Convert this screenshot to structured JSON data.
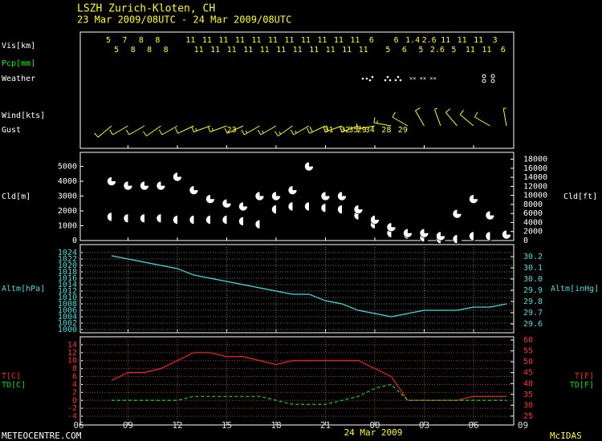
{
  "header": {
    "station": "LSZH  Zurich-Kloten,  CH",
    "period": "23 Mar 2009/08UTC - 24 Mar 2009/08UTC"
  },
  "footer": {
    "site": "METEOCENTRE.COM",
    "date": "24 Mar 2009",
    "credit": "McIDAS"
  },
  "chart_data": [
    {
      "type": "surface-obs",
      "row_labels": [
        "Vis[km]",
        "Pcp[mm]",
        "Weather",
        "Wind[kts]",
        "Gust"
      ],
      "row_label_colors": [
        "#ffffff",
        "#00ff00",
        "#ffffff",
        "#ffffff",
        "#ffffff"
      ],
      "color": "#ffff00",
      "vis": {
        "x": [
          1.8,
          2.3,
          2.8,
          3.3,
          3.8,
          4.3,
          4.8,
          5.3,
          6.8,
          7.3,
          7.8,
          8.3,
          8.8,
          9.3,
          9.8,
          10.3,
          10.8,
          11.3,
          11.8,
          12.3,
          12.8,
          13.3,
          13.8,
          14.3,
          14.8,
          15.3,
          15.8,
          16.3,
          16.8,
          17.3,
          17.8,
          18.8,
          19.3,
          19.8,
          20.3,
          20.8,
          21.3,
          21.8,
          22.3,
          22.8,
          23.3,
          23.8,
          24.3,
          24.8,
          25.3,
          25.8
        ],
        "values": [
          5,
          5,
          7,
          8,
          8,
          8,
          8,
          8,
          11,
          11,
          11,
          11,
          11,
          11,
          11,
          11,
          11,
          11,
          11,
          11,
          11,
          11,
          11,
          11,
          11,
          11,
          11,
          11,
          11,
          11,
          6,
          5,
          6,
          6,
          1.4,
          5,
          2.6,
          2.6,
          11,
          5,
          11,
          11,
          11,
          11,
          3,
          6
        ]
      },
      "wind": {
        "x": [
          2,
          3,
          4,
          5,
          6,
          7,
          8,
          9,
          10,
          11,
          12,
          13,
          14,
          15,
          16,
          17,
          18,
          19,
          20,
          21,
          22,
          23,
          24,
          25,
          26
        ],
        "direction": [
          230,
          240,
          240,
          235,
          240,
          245,
          250,
          250,
          245,
          240,
          240,
          235,
          240,
          245,
          250,
          250,
          260,
          280,
          300,
          330,
          340,
          320,
          310,
          300,
          350
        ],
        "speed": [
          10,
          12,
          12,
          10,
          12,
          14,
          15,
          15,
          14,
          15,
          16,
          15,
          18,
          20,
          20,
          18,
          16,
          15,
          12,
          10,
          8,
          10,
          12,
          10,
          8
        ]
      },
      "gust": {
        "x": [
          9.3,
          15.2,
          16.2,
          16.7,
          17.2,
          17.7,
          18.7,
          19.7
        ],
        "values": [
          23,
          31,
          32,
          35,
          29,
          34,
          28,
          29
        ]
      }
    },
    {
      "type": "cloud",
      "ylabel": "Cld[m]",
      "y2label": "Cld[ft]",
      "color": "#ffffff",
      "x": [
        2,
        3,
        4,
        5,
        6,
        7,
        8,
        9,
        10,
        11,
        12,
        13,
        14,
        15,
        16,
        17,
        18,
        19,
        20,
        21,
        22,
        23,
        24,
        25,
        26
      ],
      "series": [
        {
          "values": [
            1600,
            1500,
            1500,
            1500,
            1400,
            1400,
            1400,
            1400,
            1300,
            1100,
            2100,
            2300,
            2300,
            2200,
            2100,
            1700,
            1100,
            500,
            400,
            200,
            100,
            100,
            300,
            300,
            400
          ]
        },
        {
          "values": [
            4000,
            3700,
            3700,
            3700,
            4300,
            3400,
            2800,
            2500,
            2300,
            3000,
            3000,
            3400,
            5000,
            3000,
            3000,
            2100,
            1400,
            900,
            500,
            500,
            300,
            1800,
            2800,
            1700,
            400
          ]
        }
      ],
      "ylim": [
        0,
        5950
      ],
      "yticks": [
        0,
        1000,
        2000,
        3000,
        4000,
        5000
      ],
      "y2lim": [
        0,
        19520
      ],
      "y2ticks": [
        0,
        2000,
        4000,
        6000,
        8000,
        10000,
        12000,
        14000,
        16000,
        18000
      ]
    },
    {
      "type": "line",
      "ylabel": "Altm[hPa]",
      "y2label": "Altm[inHg]",
      "color": "#40e0e0",
      "grid": true,
      "x": [
        2,
        3,
        4,
        5,
        6,
        7,
        8,
        9,
        10,
        11,
        12,
        13,
        14,
        15,
        16,
        17,
        18,
        19,
        20,
        21,
        22,
        23,
        24,
        25,
        26
      ],
      "series": [
        {
          "color": "#40e0e0",
          "values": [
            1023,
            1022,
            1021,
            1020,
            1019,
            1017,
            1016,
            1015,
            1014,
            1013,
            1012,
            1011,
            1011,
            1009,
            1008,
            1006,
            1005,
            1004,
            1005,
            1006,
            1006,
            1006,
            1007,
            1007,
            1008
          ]
        }
      ],
      "ylim": [
        999,
        1026.5
      ],
      "yticks": [
        1000,
        1002,
        1004,
        1006,
        1008,
        1010,
        1012,
        1014,
        1016,
        1018,
        1020,
        1022,
        1024
      ],
      "y2lim": [
        29.521,
        30.307
      ],
      "y2ticks": [
        29.6,
        29.7,
        29.8,
        29.9,
        {
          "value": 30.0,
          "label": "30.0"
        },
        30.1,
        30.2
      ]
    },
    {
      "type": "line",
      "y2labels": [
        "T[F]",
        "TD[F]"
      ],
      "grid": true,
      "x": [
        2,
        3,
        4,
        5,
        6,
        7,
        8,
        9,
        10,
        11,
        12,
        13,
        14,
        15,
        16,
        17,
        18,
        19,
        20,
        21,
        22,
        23,
        24,
        25,
        26
      ],
      "series": [
        {
          "name": "T[C]",
          "color": "#ff2020",
          "dashed": false,
          "values": [
            5,
            7,
            7,
            8,
            10,
            12,
            12,
            11,
            11,
            10,
            9,
            10,
            10,
            10,
            10,
            10,
            8,
            6,
            0,
            0,
            0,
            0,
            1,
            1,
            1
          ]
        },
        {
          "name": "TD[C]",
          "color": "#00e000",
          "dashed": true,
          "values": [
            0,
            0,
            0,
            0,
            0,
            1,
            1,
            1,
            1,
            1,
            0,
            -1,
            -1,
            -1,
            0,
            1,
            3,
            4,
            0,
            0,
            0,
            0,
            0,
            0,
            0
          ]
        }
      ],
      "ylim": [
        -6.2,
        16
      ],
      "yticks": [
        -4,
        -2,
        0,
        2,
        4,
        6,
        8,
        10,
        12,
        14
      ],
      "y2lim": [
        20.9,
        61.5
      ],
      "y2ticks": [
        25,
        30,
        35,
        40,
        45,
        50,
        55,
        60
      ],
      "xlim": [
        0.1,
        26.44
      ],
      "xticks": [
        {
          "value": 0,
          "label": "06"
        },
        {
          "value": 3,
          "label": "09"
        },
        {
          "value": 6,
          "label": "12"
        },
        {
          "value": 9,
          "label": "15"
        },
        {
          "value": 12,
          "label": "18"
        },
        {
          "value": 15,
          "label": "21"
        },
        {
          "value": 18,
          "label": "00"
        },
        {
          "value": 21,
          "label": "03"
        },
        {
          "value": 24,
          "label": "06"
        },
        {
          "value": 27,
          "label": "09"
        }
      ]
    }
  ]
}
